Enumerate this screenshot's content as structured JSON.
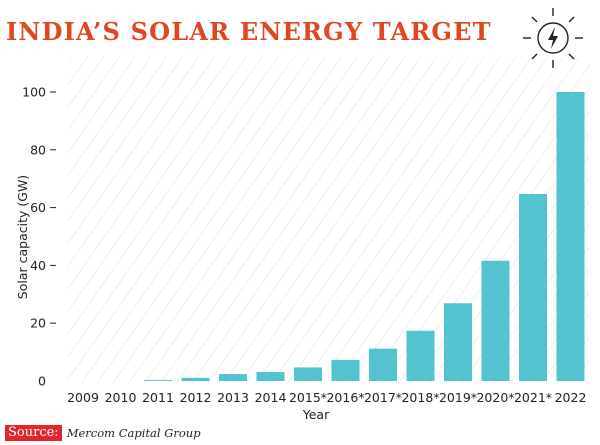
{
  "title": "INDIA’S SOLAR ENERGY TARGET",
  "icon": "sun-lightning-icon",
  "source": {
    "label": "Source:",
    "value": "Mercom Capital Group"
  },
  "colors": {
    "title": "#e0461f",
    "bar": "#55c3cf",
    "source_box": "#e3262c",
    "hatch": "#d9dee1"
  },
  "chart_data": {
    "type": "bar",
    "title": "INDIA’S SOLAR ENERGY TARGET",
    "xlabel": "Year",
    "ylabel": "Solar capacity (GW)",
    "categories": [
      "2009",
      "2010",
      "2011",
      "2012",
      "2013",
      "2014",
      "2015*",
      "2016*",
      "2017*",
      "2018*",
      "2019*",
      "2020*",
      "2021*",
      "2022"
    ],
    "values": [
      0,
      0,
      0.3,
      1.1,
      2.4,
      3.1,
      4.7,
      7.3,
      11.2,
      17.4,
      26.9,
      41.6,
      64.7,
      100
    ],
    "ylim": [
      0,
      100
    ],
    "yticks": [
      0,
      20,
      40,
      60,
      80,
      100
    ],
    "grid": false,
    "legend": "none"
  }
}
